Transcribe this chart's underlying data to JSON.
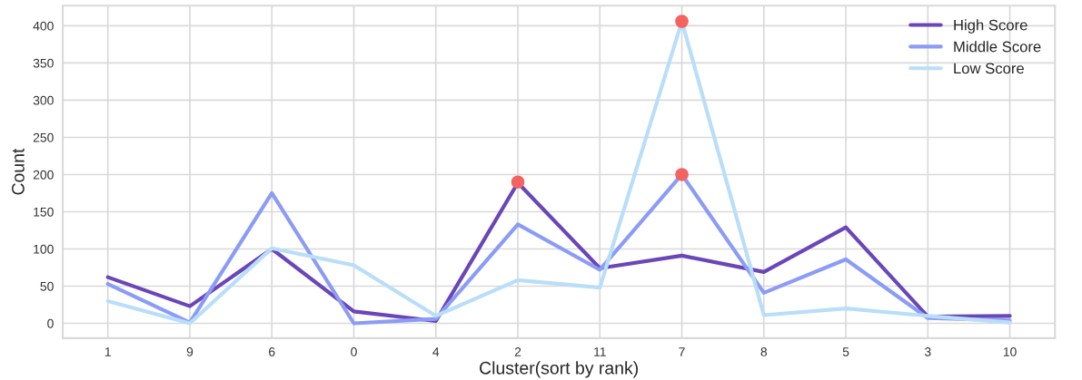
{
  "chart_data": {
    "type": "line",
    "xlabel": "Cluster(sort by rank)",
    "ylabel": "Count",
    "categories": [
      "1",
      "9",
      "6",
      "0",
      "4",
      "2",
      "11",
      "7",
      "8",
      "5",
      "3",
      "10"
    ],
    "series": [
      {
        "name": "High Score",
        "color": "#6a46b8",
        "values": [
          62,
          23,
          100,
          16,
          3,
          189,
          74,
          91,
          69,
          129,
          9,
          10
        ]
      },
      {
        "name": "Middle Score",
        "color": "#8b9cf7",
        "values": [
          53,
          1,
          175,
          0,
          6,
          133,
          72,
          200,
          41,
          86,
          7,
          4
        ]
      },
      {
        "name": "Low Score",
        "color": "#b9def9",
        "values": [
          30,
          0,
          101,
          78,
          10,
          58,
          48,
          406,
          11,
          20,
          10,
          1
        ]
      },
      {
        "type": "scatter",
        "marker": "circle",
        "color": "#f56262",
        "x": [
          "2",
          "7",
          "7"
        ],
        "values": [
          190,
          406,
          200
        ]
      }
    ],
    "ylim": [
      -20,
      427
    ],
    "yticks": [
      0,
      50,
      100,
      150,
      200,
      250,
      300,
      350,
      400
    ],
    "grid": true,
    "legend": "top right",
    "marker": "none",
    "line_style": "solid"
  }
}
